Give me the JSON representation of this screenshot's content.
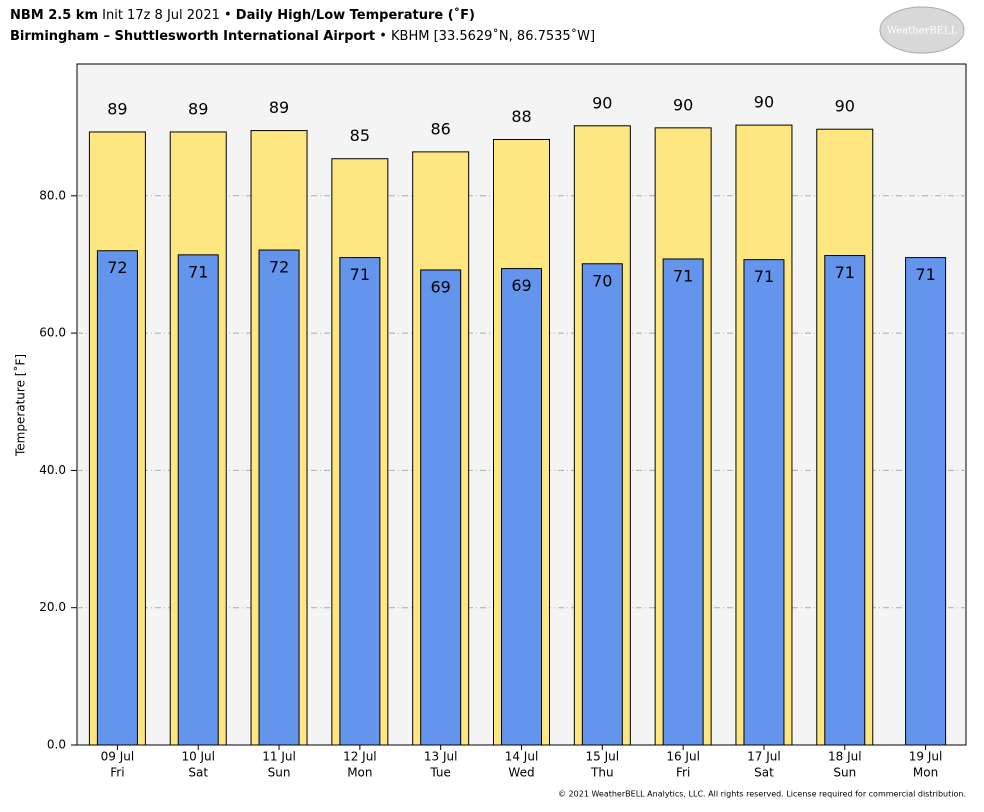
{
  "chart_data": {
    "type": "bar",
    "model": "NBM 2.5 km",
    "init": "Init 17z 8 Jul 2021",
    "title": "Daily High/Low Temperature (˚F)",
    "location": "Birmingham – Shuttlesworth International Airport",
    "station": "KBHM [33.5629˚N, 86.7535˚W]",
    "y_label": "Temperature [˚F]",
    "categories": [
      "09 Jul",
      "10 Jul",
      "11 Jul",
      "12 Jul",
      "13 Jul",
      "14 Jul",
      "15 Jul",
      "16 Jul",
      "17 Jul",
      "18 Jul",
      "19 Jul"
    ],
    "weekdays": [
      "Fri",
      "Sat",
      "Sun",
      "Mon",
      "Tue",
      "Wed",
      "Thu",
      "Fri",
      "Sat",
      "Sun",
      "Mon"
    ],
    "series": [
      {
        "name": "High",
        "color": "#fee680",
        "values": [
          89.3,
          89.3,
          89.5,
          85.4,
          86.4,
          88.2,
          90.2,
          89.9,
          90.3,
          89.7,
          null
        ],
        "value_labels": [
          "89",
          "89",
          "89",
          "85",
          "86",
          "88",
          "90",
          "90",
          "90",
          "90",
          null
        ]
      },
      {
        "name": "Low",
        "color": "#6495ed",
        "values": [
          72.0,
          71.4,
          72.1,
          71.0,
          69.2,
          69.4,
          70.1,
          70.8,
          70.7,
          71.3,
          71.0
        ],
        "value_labels": [
          "72",
          "71",
          "72",
          "71",
          "69",
          "69",
          "70",
          "71",
          "71",
          "71",
          "71"
        ]
      }
    ],
    "ylim": [
      0,
      99.2
    ],
    "yticks": [
      {
        "value": 0,
        "label": "0.0"
      },
      {
        "value": 20,
        "label": "20.0"
      },
      {
        "value": 40,
        "label": "40.0"
      },
      {
        "value": 60,
        "label": "60.0"
      },
      {
        "value": 80,
        "label": "80.0"
      }
    ],
    "grid": true
  },
  "logo": "WeatherBELL",
  "footer": "© 2021 WeatherBELL Analytics, LLC. All rights reserved. License required for commercial distribution."
}
